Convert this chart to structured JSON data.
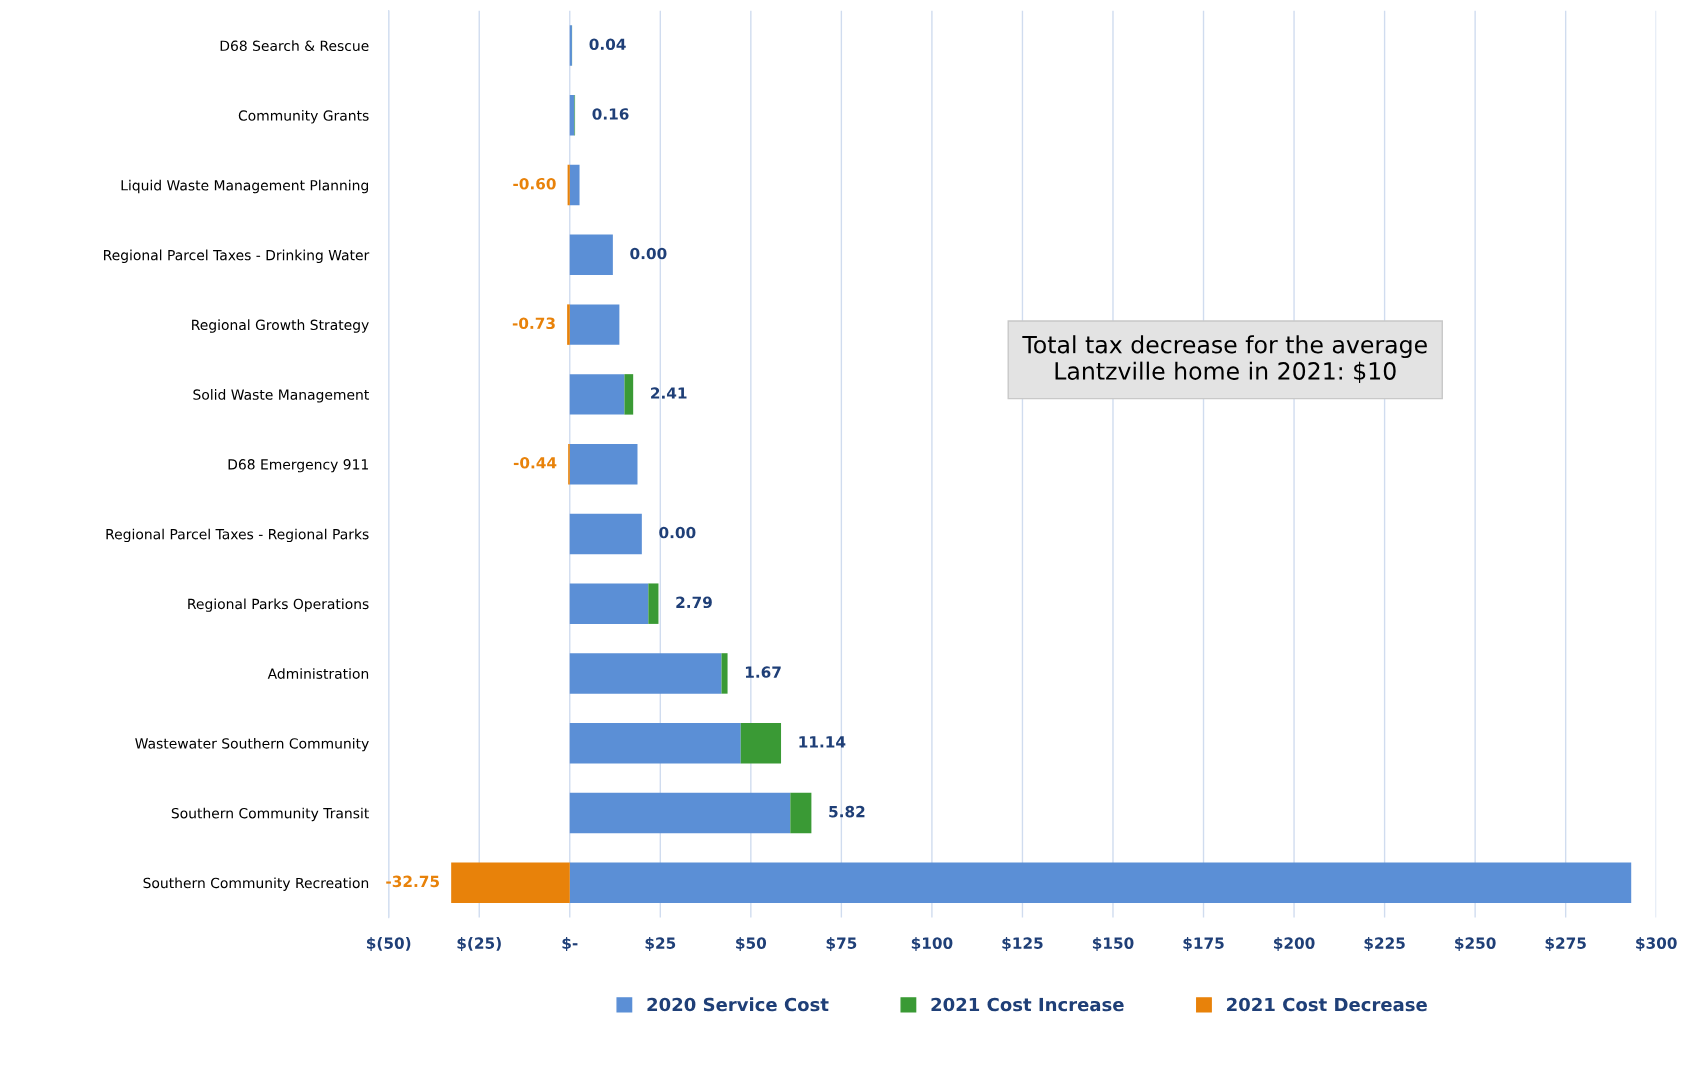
{
  "chart_data": {
    "type": "bar",
    "orientation": "horizontal",
    "stacked": true,
    "categories": [
      "D68 Search & Rescue",
      "Community Grants",
      "Liquid Waste Management Planning",
      "Regional Parcel Taxes - Drinking Water",
      "Regional Growth Strategy",
      "Solid Waste Management",
      "D68 Emergency 911",
      "Regional Parcel Taxes - Regional Parks",
      "Regional Parks Operations",
      "Administration",
      "Wastewater Southern Community",
      "Southern Community Transit",
      "Southern Community Recreation"
    ],
    "series": [
      {
        "name": "2020 Service Cost",
        "color": "#5b8fd6",
        "values": [
          0.6,
          1.3,
          2.7,
          11.9,
          13.7,
          15.1,
          18.7,
          19.9,
          21.7,
          41.9,
          47.2,
          60.9,
          293.1
        ]
      },
      {
        "name": "2021 Cost Increase",
        "color": "#3a9a35",
        "values": [
          0.04,
          0.16,
          null,
          0.0,
          null,
          2.41,
          null,
          0.0,
          2.79,
          1.67,
          11.14,
          5.82,
          null
        ],
        "value_labels": [
          "0.04",
          "0.16",
          null,
          "0.00",
          null,
          "2.41",
          null,
          "0.00",
          "2.79",
          "1.67",
          "11.14",
          "5.82",
          null
        ]
      },
      {
        "name": "2021 Cost Decrease",
        "color": "#e8820a",
        "values": [
          null,
          null,
          -0.6,
          null,
          -0.73,
          null,
          -0.44,
          null,
          null,
          null,
          null,
          null,
          -32.75
        ],
        "value_labels": [
          null,
          null,
          "-0.60",
          null,
          "-0.73",
          null,
          "-0.44",
          null,
          null,
          null,
          null,
          null,
          "-32.75"
        ]
      }
    ],
    "xlim": [
      -50,
      300
    ],
    "xticks": [
      {
        "value": -50,
        "label": "$(50)"
      },
      {
        "value": -25,
        "label": "$(25)"
      },
      {
        "value": 0,
        "label": "$-"
      },
      {
        "value": 25,
        "label": "$25"
      },
      {
        "value": 50,
        "label": "$50"
      },
      {
        "value": 75,
        "label": "$75"
      },
      {
        "value": 100,
        "label": "$100"
      },
      {
        "value": 125,
        "label": "$125"
      },
      {
        "value": 150,
        "label": "$150"
      },
      {
        "value": 175,
        "label": "$175"
      },
      {
        "value": 200,
        "label": "$200"
      },
      {
        "value": 225,
        "label": "$225"
      },
      {
        "value": 250,
        "label": "$250"
      },
      {
        "value": 275,
        "label": "$275"
      },
      {
        "value": 300,
        "label": "$300"
      }
    ],
    "grid": "x",
    "legend": "bottom",
    "annotations": [
      "Total tax decrease for the average\nLantzville home in 2021: $10"
    ]
  }
}
